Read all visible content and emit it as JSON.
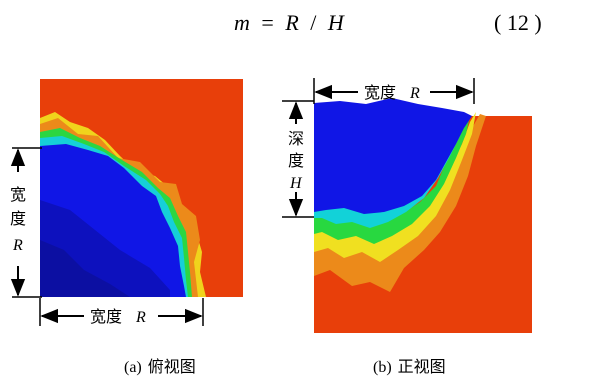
{
  "equation": {
    "lhs": "m",
    "eq": "=",
    "r": "R",
    "slash": "/",
    "h": "H",
    "number": "( 12 )"
  },
  "panel_a": {
    "width_label": "宽度",
    "width_sym": "R",
    "side_label_1": "宽",
    "side_label_2": "度",
    "side_sym": "R",
    "caption_tag": "(a)",
    "caption": "俯视图"
  },
  "panel_b": {
    "width_label": "宽度",
    "width_sym": "R",
    "depth_1": "深",
    "depth_2": "度",
    "depth_sym": "H",
    "caption_tag": "(b)",
    "caption": "正视图"
  },
  "colors": {
    "background": "#e83f0a",
    "core": "#1016e6",
    "core_dark": "#0b0f9c",
    "cyan": "#12d2d8",
    "green": "#28d840",
    "yellow": "#f0e020",
    "orange": "#ee8a18"
  }
}
